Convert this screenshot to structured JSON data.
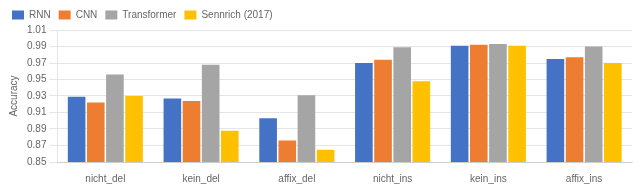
{
  "chart_data": {
    "type": "bar",
    "categories": [
      "nicht_del",
      "kein_del",
      "affix_del",
      "nicht_ins",
      "kein_ins",
      "affix_ins"
    ],
    "series": [
      {
        "name": "RNN",
        "color": "#4472C4",
        "values": [
          0.929,
          0.927,
          0.903,
          0.97,
          0.991,
          0.975
        ]
      },
      {
        "name": "CNN",
        "color": "#ED7D31",
        "values": [
          0.922,
          0.924,
          0.876,
          0.974,
          0.992,
          0.977
        ]
      },
      {
        "name": "Transformer",
        "color": "#A5A5A5",
        "values": [
          0.956,
          0.968,
          0.931,
          0.989,
          0.993,
          0.99
        ]
      },
      {
        "name": "Sennrich (2017)",
        "color": "#FFC000",
        "values": [
          0.93,
          0.888,
          0.865,
          0.948,
          0.991,
          0.97
        ]
      }
    ],
    "ylabel": "Accuracy",
    "ylim": [
      0.85,
      1.01
    ],
    "yticks": [
      0.85,
      0.87,
      0.89,
      0.91,
      0.93,
      0.95,
      0.97,
      0.99,
      1.01
    ],
    "grid": true,
    "legend": "upper left"
  }
}
